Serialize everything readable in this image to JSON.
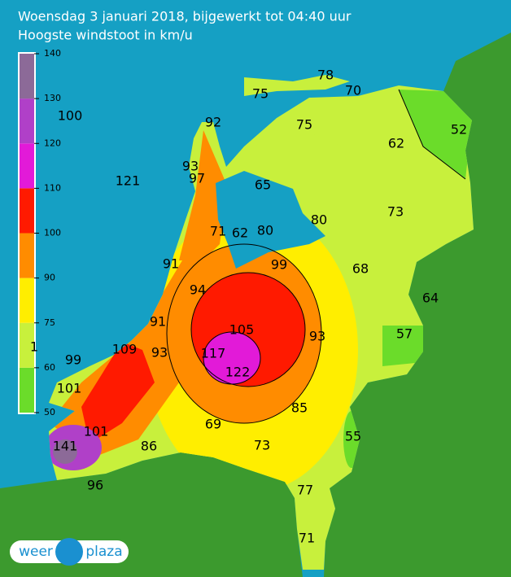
{
  "header": {
    "title": "Woensdag 3 januari 2018, bijgewerkt tot 04:40 uur",
    "subtitle": "Hoogste windstoot in km/u"
  },
  "legend": {
    "ticks": [
      50,
      60,
      75,
      90,
      100,
      110,
      120,
      130,
      140
    ],
    "colors": [
      "#6bdc2a",
      "#c8f03c",
      "#ffee00",
      "#ff8c00",
      "#ff1a00",
      "#e21ad8",
      "#b040c8",
      "#8c6a98"
    ]
  },
  "stations": [
    100,
    92,
    75,
    78,
    70,
    75,
    62,
    52,
    93,
    97,
    65,
    121,
    80,
    73,
    71,
    62,
    80,
    91,
    99,
    68,
    94,
    64,
    91,
    105,
    93,
    57,
    109,
    93,
    117,
    1,
    99,
    122,
    101,
    85,
    69,
    101,
    55,
    141,
    86,
    73,
    77,
    96,
    71
  ],
  "logo": {
    "left": "weer",
    "right": "plaza"
  }
}
